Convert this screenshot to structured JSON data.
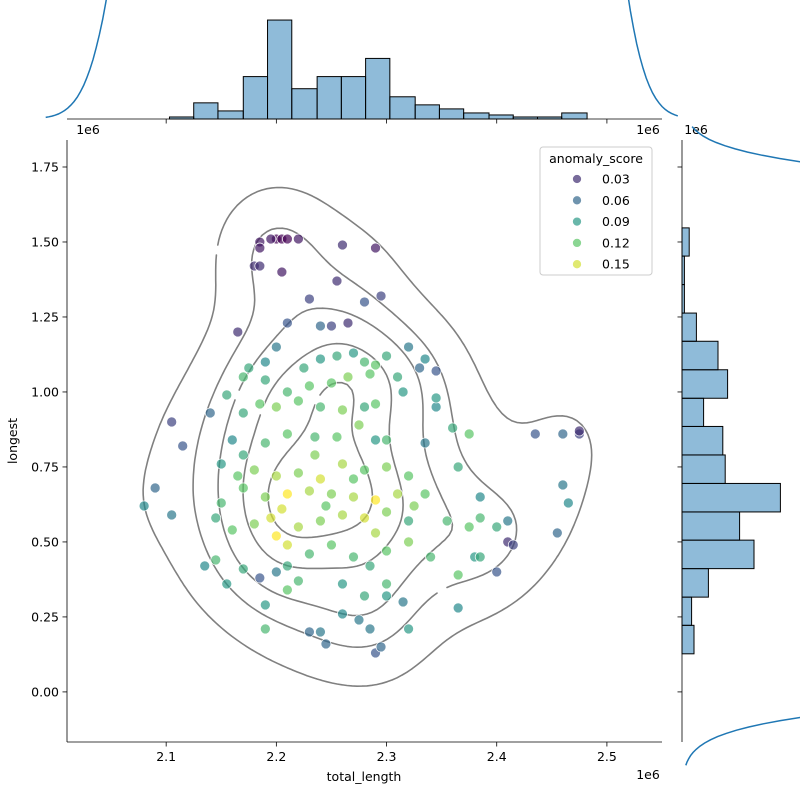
{
  "chart_data": {
    "type": "scatter",
    "x_label": "total_length",
    "y_label": "longest",
    "offset_texts": [
      "1e6",
      "1e6",
      "1e6",
      "1e6"
    ],
    "xlim": [
      2.01,
      2.55
    ],
    "xticks": [
      2.1,
      2.2,
      2.3,
      2.4,
      2.5
    ],
    "ylim": [
      -0.167,
      1.84
    ],
    "yticks": [
      {
        "value": 0,
        "label": "0.00"
      },
      0.25,
      {
        "value": 0.5,
        "label": "0.50"
      },
      0.75,
      {
        "value": 1,
        "label": "1.00"
      },
      1.25,
      {
        "value": 1.5,
        "label": "1.50"
      },
      1.75
    ],
    "colormap": "viridis",
    "contour_color": "#808080",
    "hist_color": "#1f77b4",
    "legend": {
      "title": "anomaly_score",
      "values": [
        0.03,
        0.06,
        0.09,
        0.12,
        0.15
      ],
      "loc": "upper right"
    },
    "x": [
      2.185,
      2.185,
      2.2,
      2.205,
      2.21,
      2.22,
      2.195,
      2.18,
      2.185,
      2.205,
      2.26,
      2.29,
      2.255,
      2.23,
      2.28,
      2.295,
      2.165,
      2.21,
      2.25,
      2.265,
      2.24,
      2.2,
      2.19,
      2.175,
      2.225,
      2.24,
      2.255,
      2.27,
      2.28,
      2.29,
      2.3,
      2.32,
      2.33,
      2.335,
      2.345,
      2.31,
      2.285,
      2.265,
      2.25,
      2.23,
      2.21,
      2.19,
      2.17,
      2.155,
      2.14,
      2.105,
      2.115,
      2.09,
      2.08,
      2.105,
      2.17,
      2.185,
      2.2,
      2.22,
      2.24,
      2.26,
      2.28,
      2.29,
      2.315,
      2.345,
      2.345,
      2.36,
      2.375,
      2.335,
      2.3,
      2.29,
      2.275,
      2.255,
      2.235,
      2.21,
      2.19,
      2.17,
      2.16,
      2.15,
      2.165,
      2.18,
      2.2,
      2.22,
      2.24,
      2.26,
      2.28,
      2.3,
      2.32,
      2.335,
      2.31,
      2.29,
      2.27,
      2.25,
      2.23,
      2.21,
      2.19,
      2.17,
      2.15,
      2.145,
      2.16,
      2.18,
      2.195,
      2.2,
      2.21,
      2.22,
      2.24,
      2.26,
      2.28,
      2.3,
      2.32,
      2.355,
      2.375,
      2.385,
      2.4,
      2.385,
      2.365,
      2.41,
      2.41,
      2.415,
      2.4,
      2.38,
      2.365,
      2.34,
      2.32,
      2.3,
      2.285,
      2.27,
      2.25,
      2.23,
      2.21,
      2.2,
      2.185,
      2.17,
      2.145,
      2.135,
      2.155,
      2.19,
      2.19,
      2.21,
      2.22,
      2.23,
      2.24,
      2.245,
      2.26,
      2.26,
      2.275,
      2.285,
      2.29,
      2.295,
      2.3,
      2.28,
      2.3,
      2.32,
      2.315,
      2.365,
      2.435,
      2.46,
      2.475,
      2.475,
      2.46,
      2.465,
      2.455,
      2.385,
      2.27,
      2.235,
      2.29,
      2.325,
      2.245,
      2.205
    ],
    "y": [
      1.5,
      1.48,
      1.51,
      1.51,
      1.51,
      1.51,
      1.51,
      1.42,
      1.42,
      1.4,
      1.49,
      1.48,
      1.37,
      1.31,
      1.3,
      1.32,
      1.2,
      1.23,
      1.22,
      1.23,
      1.22,
      1.15,
      1.1,
      1.08,
      1.08,
      1.11,
      1.12,
      1.13,
      1.1,
      1.09,
      1.12,
      1.15,
      1.08,
      1.11,
      1.07,
      1.05,
      1.06,
      1.05,
      1.03,
      1.02,
      1.0,
      1.04,
      1.05,
      0.99,
      0.93,
      0.9,
      0.82,
      0.68,
      0.62,
      0.59,
      0.93,
      0.96,
      0.95,
      0.97,
      0.95,
      0.94,
      0.95,
      0.96,
      1.0,
      0.95,
      0.98,
      0.88,
      0.86,
      0.83,
      0.84,
      0.84,
      0.89,
      0.85,
      0.85,
      0.86,
      0.83,
      0.79,
      0.84,
      0.76,
      0.72,
      0.74,
      0.72,
      0.73,
      0.71,
      0.76,
      0.74,
      0.75,
      0.72,
      0.66,
      0.66,
      0.64,
      0.65,
      0.66,
      0.67,
      0.66,
      0.65,
      0.68,
      0.63,
      0.58,
      0.54,
      0.56,
      0.58,
      0.52,
      0.49,
      0.55,
      0.57,
      0.59,
      0.58,
      0.6,
      0.57,
      0.57,
      0.55,
      0.58,
      0.55,
      0.65,
      0.75,
      0.57,
      0.5,
      0.49,
      0.4,
      0.45,
      0.39,
      0.45,
      0.5,
      0.47,
      0.42,
      0.45,
      0.49,
      0.46,
      0.42,
      0.4,
      0.38,
      0.41,
      0.44,
      0.42,
      0.36,
      0.29,
      0.21,
      0.34,
      0.37,
      0.2,
      0.2,
      0.16,
      0.26,
      0.36,
      0.24,
      0.21,
      0.13,
      0.15,
      0.32,
      0.32,
      0.36,
      0.21,
      0.3,
      0.28,
      0.86,
      0.86,
      0.86,
      0.87,
      0.69,
      0.63,
      0.53,
      0.45,
      0.71,
      0.79,
      0.53,
      0.62,
      0.62,
      0.61
    ],
    "hue": [
      0.02,
      0.02,
      0.01,
      0.01,
      0.01,
      0.02,
      0.02,
      0.03,
      0.03,
      0.02,
      0.03,
      0.02,
      0.03,
      0.04,
      0.05,
      0.04,
      0.03,
      0.05,
      0.04,
      0.03,
      0.06,
      0.07,
      0.08,
      0.1,
      0.1,
      0.09,
      0.1,
      0.09,
      0.11,
      0.12,
      0.1,
      0.07,
      0.06,
      0.08,
      0.05,
      0.1,
      0.12,
      0.13,
      0.12,
      0.12,
      0.11,
      0.1,
      0.11,
      0.1,
      0.06,
      0.04,
      0.05,
      0.06,
      0.08,
      0.07,
      0.1,
      0.12,
      0.13,
      0.12,
      0.11,
      0.13,
      0.1,
      0.12,
      0.09,
      0.08,
      0.09,
      0.1,
      0.12,
      0.07,
      0.11,
      0.09,
      0.13,
      0.12,
      0.11,
      0.12,
      0.11,
      0.1,
      0.08,
      0.09,
      0.12,
      0.13,
      0.14,
      0.13,
      0.15,
      0.14,
      0.12,
      0.13,
      0.12,
      0.12,
      0.14,
      0.16,
      0.14,
      0.13,
      0.14,
      0.16,
      0.13,
      0.12,
      0.11,
      0.1,
      0.12,
      0.13,
      0.15,
      0.16,
      0.15,
      0.14,
      0.13,
      0.14,
      0.15,
      0.13,
      0.1,
      0.11,
      0.12,
      0.11,
      0.1,
      0.08,
      0.1,
      0.07,
      0.03,
      0.04,
      0.05,
      0.09,
      0.12,
      0.11,
      0.13,
      0.12,
      0.1,
      0.11,
      0.12,
      0.11,
      0.1,
      0.07,
      0.05,
      0.1,
      0.11,
      0.08,
      0.09,
      0.09,
      0.11,
      0.12,
      0.11,
      0.06,
      0.07,
      0.06,
      0.08,
      0.09,
      0.07,
      0.07,
      0.05,
      0.06,
      0.09,
      0.1,
      0.11,
      0.09,
      0.07,
      0.08,
      0.05,
      0.06,
      0.04,
      0.03,
      0.07,
      0.08,
      0.06,
      0.1,
      0.12,
      0.13,
      0.14,
      0.13,
      0.12,
      0.15
    ],
    "top_hist": {
      "bins": [
        2.103,
        2.125,
        2.147,
        2.17,
        2.192,
        2.214,
        2.237,
        2.259,
        2.281,
        2.303,
        2.326,
        2.348,
        2.37,
        2.393,
        2.415,
        2.437,
        2.459,
        2.482
      ],
      "counts": [
        1,
        8,
        4,
        21,
        49,
        15,
        21,
        21,
        30,
        11,
        7,
        5,
        3,
        2,
        1,
        1,
        3
      ],
      "ylim": [
        0,
        51.5
      ]
    },
    "right_hist": {
      "bins": [
        0.127,
        0.222,
        0.316,
        0.411,
        0.506,
        0.6,
        0.695,
        0.79,
        0.885,
        0.979,
        1.074,
        1.169,
        1.263,
        1.358,
        1.453,
        1.547
      ],
      "counts": [
        5,
        4,
        11,
        30,
        24,
        41,
        18,
        17,
        9,
        19,
        15,
        6,
        1,
        1,
        3
      ],
      "xlim": [
        0,
        45
      ]
    }
  }
}
